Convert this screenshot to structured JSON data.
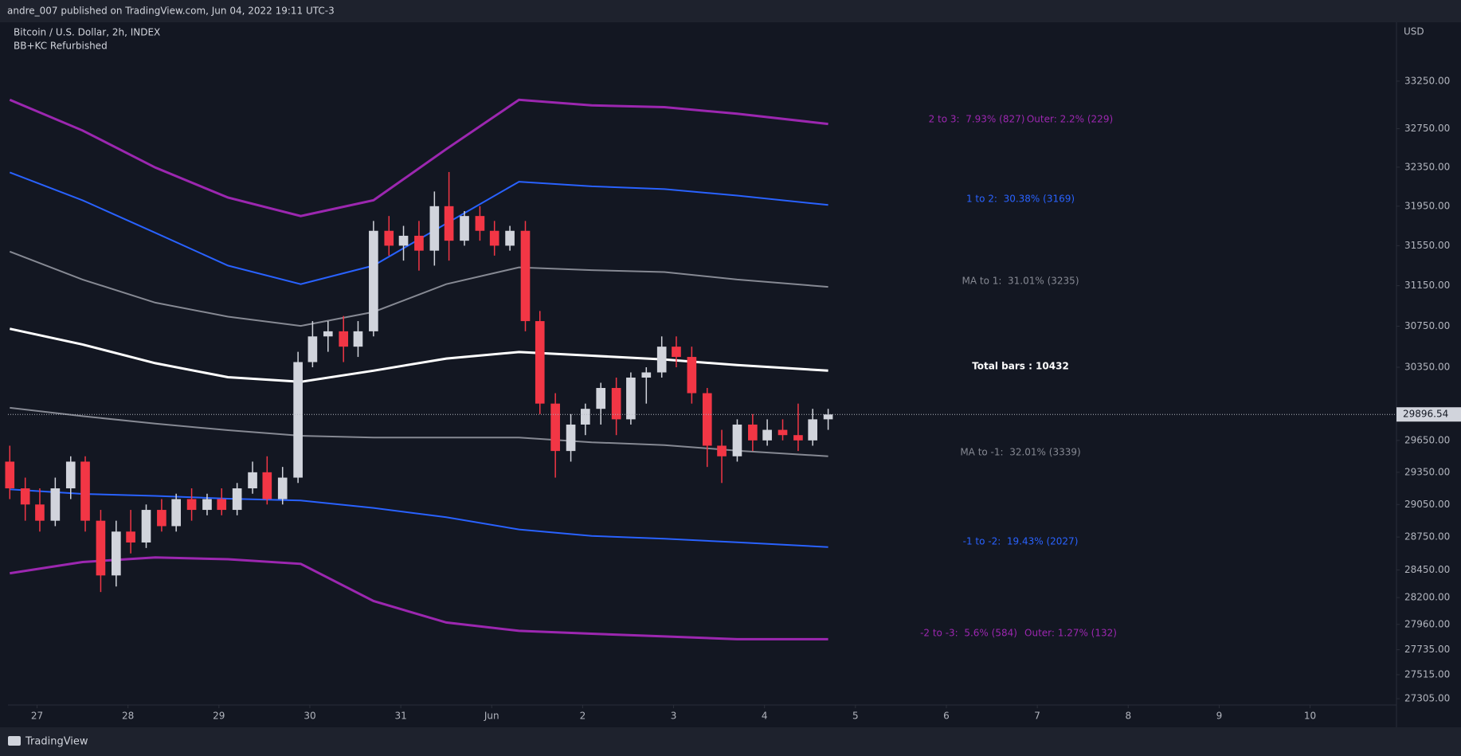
{
  "header": "andre_007 published on TradingView.com, Jun 04, 2022 19:11 UTC-3",
  "footer": "TradingView",
  "chart_data": {
    "type": "candlestick",
    "title": "Bitcoin / U.S. Dollar, 2h, INDEX",
    "subtitle": "BB+KC Refurbished",
    "axis_unit": "USD",
    "log_scale": true,
    "grid": false,
    "up_color": "#d1d4dc",
    "down_color": "#f23645",
    "xlim": [
      26.68,
      41.95
    ],
    "xticks": [
      27,
      28,
      29,
      30,
      31,
      {
        "value": 32,
        "label": "Jun"
      },
      {
        "value": 33,
        "label": "2"
      },
      {
        "value": 34,
        "label": "3"
      },
      {
        "value": 35,
        "label": "4"
      },
      {
        "value": 36,
        "label": "5"
      },
      {
        "value": 37,
        "label": "6"
      },
      {
        "value": 38,
        "label": "7"
      },
      {
        "value": 39,
        "label": "8"
      },
      {
        "value": 40,
        "label": "9"
      },
      {
        "value": 41,
        "label": "10"
      }
    ],
    "ylim": [
      27250,
      33880
    ],
    "yticks": [
      {
        "value": 33250,
        "label": "33250.00"
      },
      {
        "value": 32750,
        "label": "32750.00"
      },
      {
        "value": 32350,
        "label": "32350.00"
      },
      {
        "value": 31950,
        "label": "31950.00"
      },
      {
        "value": 31550,
        "label": "31550.00"
      },
      {
        "value": 31150,
        "label": "31150.00"
      },
      {
        "value": 30750,
        "label": "30750.00"
      },
      {
        "value": 30350,
        "label": "30350.00"
      },
      {
        "value": 29650,
        "label": "29650.00"
      },
      {
        "value": 29350,
        "label": "29350.00"
      },
      {
        "value": 29050,
        "label": "29050.00"
      },
      {
        "value": 28750,
        "label": "28750.00"
      },
      {
        "value": 28450,
        "label": "28450.00"
      },
      {
        "value": 28200,
        "label": "28200.00"
      },
      {
        "value": 27960,
        "label": "27960.00"
      },
      {
        "value": 27735,
        "label": "27735.00"
      },
      {
        "value": 27515,
        "label": "27515.00"
      },
      {
        "value": 27305,
        "label": "27305.00"
      }
    ],
    "last_price": {
      "value": 29896.54,
      "label": "29896.54"
    },
    "candles": {
      "x": [
        26.7,
        26.87,
        27.03,
        27.2,
        27.37,
        27.53,
        27.7,
        27.87,
        28.03,
        28.2,
        28.37,
        28.53,
        28.7,
        28.87,
        29.03,
        29.2,
        29.37,
        29.53,
        29.7,
        29.87,
        30.03,
        30.2,
        30.37,
        30.53,
        30.7,
        30.87,
        31.03,
        31.2,
        31.37,
        31.53,
        31.7,
        31.87,
        32.03,
        32.2,
        32.37,
        32.53,
        32.7,
        32.87,
        33.03,
        33.2,
        33.37,
        33.53,
        33.7,
        33.87,
        34.03,
        34.2,
        34.37,
        34.53,
        34.7,
        34.87,
        35.03,
        35.2,
        35.37,
        35.53,
        35.7
      ],
      "open": [
        29450,
        29200,
        29050,
        28900,
        29200,
        29450,
        28900,
        28400,
        28800,
        28700,
        29000,
        28850,
        29100,
        29000,
        29100,
        29000,
        29200,
        29350,
        29100,
        29300,
        30400,
        30650,
        30700,
        30550,
        30700,
        31700,
        31550,
        31650,
        31500,
        31950,
        31600,
        31850,
        31700,
        31550,
        31700,
        30800,
        30000,
        29550,
        29800,
        29950,
        30150,
        29850,
        30250,
        30300,
        30550,
        30450,
        30100,
        29600,
        29500,
        29800,
        29650,
        29750,
        29700,
        29650,
        29850
      ],
      "high": [
        29600,
        29300,
        29200,
        29300,
        29500,
        29500,
        29000,
        28900,
        29000,
        29050,
        29100,
        29150,
        29200,
        29150,
        29200,
        29250,
        29450,
        29500,
        29400,
        30500,
        30800,
        30800,
        30850,
        30800,
        31800,
        31850,
        31750,
        31800,
        32100,
        32300,
        31900,
        31950,
        31800,
        31750,
        31800,
        30900,
        30100,
        29900,
        30000,
        30200,
        30250,
        30300,
        30350,
        30650,
        30650,
        30550,
        30150,
        29750,
        29850,
        29900,
        29850,
        29850,
        30000,
        29950,
        29950
      ],
      "low": [
        29100,
        28900,
        28800,
        28850,
        29100,
        28800,
        28250,
        28300,
        28600,
        28650,
        28800,
        28800,
        28900,
        28950,
        28950,
        28950,
        29150,
        29050,
        29050,
        29250,
        30350,
        30500,
        30400,
        30450,
        30650,
        31450,
        31400,
        31300,
        31350,
        31400,
        31550,
        31600,
        31450,
        31500,
        30700,
        29900,
        29300,
        29450,
        29700,
        29800,
        29700,
        29800,
        30000,
        30250,
        30350,
        30000,
        29400,
        29250,
        29450,
        29550,
        29600,
        29650,
        29550,
        29600,
        29750
      ],
      "close": [
        29200,
        29050,
        28900,
        29200,
        29450,
        28900,
        28400,
        28800,
        28700,
        29000,
        28850,
        29100,
        29000,
        29100,
        29000,
        29200,
        29350,
        29100,
        29300,
        30400,
        30650,
        30700,
        30550,
        30700,
        31700,
        31550,
        31650,
        31500,
        31950,
        31600,
        31850,
        31700,
        31550,
        31700,
        30800,
        30000,
        29550,
        29800,
        29950,
        30150,
        29850,
        30250,
        30300,
        30550,
        30450,
        30100,
        29600,
        29500,
        29800,
        29650,
        29750,
        29700,
        29650,
        29850,
        29896.54
      ]
    },
    "band_x": [
      26.7,
      27.5,
      28.3,
      29.1,
      29.9,
      30.7,
      31.5,
      32.3,
      33.1,
      33.9,
      34.7,
      35.7
    ],
    "bands": [
      {
        "color": "#9c27b0",
        "values": [
          33053,
          32731,
          32346,
          32038,
          31850,
          32010,
          32537,
          33053,
          32994,
          32975,
          32906,
          32799
        ]
      },
      {
        "color": "#2962ff",
        "values": [
          32296,
          32010,
          31680,
          31350,
          31165,
          31350,
          31774,
          32200,
          32153,
          32124,
          32058,
          31962
        ]
      },
      {
        "color": "#868993",
        "values": [
          31491,
          31211,
          30982,
          30844,
          30753,
          30890,
          31165,
          31333,
          31305,
          31286,
          31211,
          31138
        ]
      },
      {
        "color": "#ffffff",
        "values": [
          30725,
          30571,
          30389,
          30254,
          30209,
          30317,
          30434,
          30498,
          30462,
          30425,
          30371,
          30317
        ]
      },
      {
        "color": "#868993",
        "values": [
          29960,
          29880,
          29809,
          29747,
          29694,
          29677,
          29677,
          29677,
          29632,
          29606,
          29553,
          29501
        ]
      },
      {
        "color": "#2962ff",
        "values": [
          29191,
          29148,
          29130,
          29104,
          29087,
          29018,
          28932,
          28820,
          28760,
          28735,
          28701,
          28658
        ]
      },
      {
        "color": "#9c27b0",
        "values": [
          28420,
          28522,
          28564,
          28547,
          28505,
          28169,
          27977,
          27902,
          27877,
          27853,
          27828,
          27828
        ]
      }
    ],
    "annotations": [
      {
        "text": "2 to 3:  7.93% (827)",
        "color": "#9c27b0"
      },
      {
        "text": "Outer: 2.2% (229)",
        "color": "#9c27b0"
      },
      {
        "text": "1 to 2:  30.38% (3169)",
        "color": "#2962ff"
      },
      {
        "text": "MA to 1:  31.01% (3235)",
        "color": "#868993"
      },
      {
        "text": "Total bars : 10432",
        "color": "#ffffff"
      },
      {
        "text": "MA to -1:  32.01% (3339)",
        "color": "#868993"
      },
      {
        "text": "-1 to -2:  19.43% (2027)",
        "color": "#2962ff"
      },
      {
        "text": "-2 to -3:  5.6% (584)",
        "color": "#9c27b0"
      },
      {
        "text": "Outer: 1.27% (132)",
        "color": "#9c27b0"
      }
    ]
  }
}
